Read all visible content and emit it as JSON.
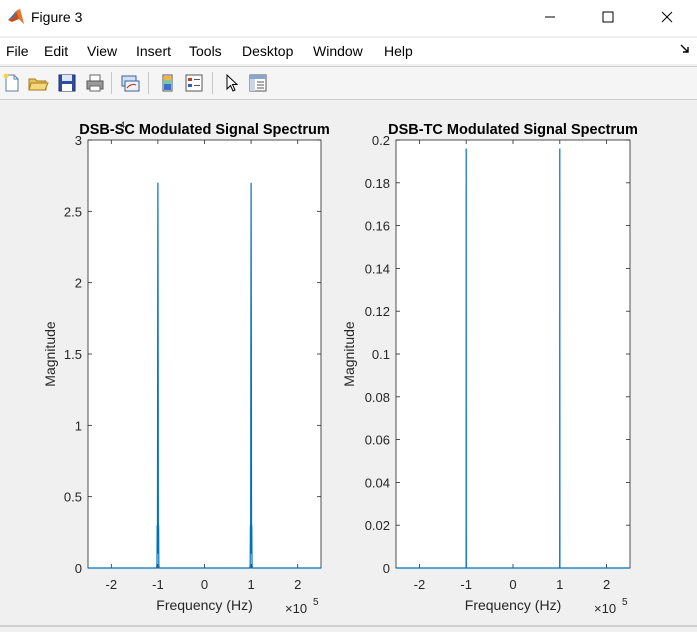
{
  "window": {
    "title": "Figure 3",
    "minimize_icon": "minimize-icon",
    "maximize_icon": "maximize-icon",
    "close_icon": "close-icon"
  },
  "menu": {
    "items": [
      "File",
      "Edit",
      "View",
      "Insert",
      "Tools",
      "Desktop",
      "Window",
      "Help"
    ]
  },
  "toolbar": {
    "icons": [
      "new-figure-icon",
      "open-file-icon",
      "save-icon",
      "print-icon",
      "link-plot-icon",
      "insert-colorbar-icon",
      "insert-legend-icon",
      "edit-plot-icon",
      "property-inspector-icon"
    ]
  },
  "colors": {
    "line": "#0072BD",
    "axes_bg": "#ffffff",
    "figure_bg": "#f0f0f0"
  },
  "chart_data": [
    {
      "type": "line",
      "title": "DSB-SC Modulated Signal Spectrum",
      "xlabel": "Frequency (Hz)",
      "ylabel": "Magnitude",
      "x_exponent_base": "×10",
      "x_exponent_power": "5",
      "y_exponent_fragment": "4",
      "xlim": [
        -2.5,
        2.5
      ],
      "ylim": [
        0,
        3
      ],
      "xticks": [
        -2,
        -1,
        0,
        1,
        2
      ],
      "xtick_labels": [
        "-2",
        "-1",
        "0",
        "1",
        "2"
      ],
      "yticks": [
        0,
        0.5,
        1,
        1.5,
        2,
        2.5,
        3
      ],
      "ytick_labels": [
        "0",
        "0.5",
        "1",
        "1.5",
        "2",
        "2.5",
        "3"
      ],
      "grid": false,
      "x_scale": 100000,
      "x": [
        -2.5,
        -1.03,
        -1.02,
        -1.015,
        -1.01,
        -1.005,
        -1.0,
        -0.995,
        -0.99,
        -0.985,
        -0.98,
        -0.97,
        0.97,
        0.98,
        0.985,
        0.99,
        0.995,
        1.0,
        1.005,
        1.01,
        1.015,
        1.02,
        1.03,
        2.5
      ],
      "y": [
        0,
        0,
        0.02,
        0.3,
        0.1,
        1.6,
        2.7,
        1.6,
        0.1,
        0.3,
        0.02,
        0,
        0,
        0.02,
        0.3,
        0.1,
        1.6,
        2.7,
        1.6,
        0.1,
        0.3,
        0.02,
        0,
        0
      ]
    },
    {
      "type": "line",
      "title": "DSB-TC Modulated Signal Spectrum",
      "xlabel": "Frequency (Hz)",
      "ylabel": "Magnitude",
      "x_exponent_base": "×10",
      "x_exponent_power": "5",
      "xlim": [
        -2.5,
        2.5
      ],
      "ylim": [
        0,
        0.2
      ],
      "xticks": [
        -2,
        -1,
        0,
        1,
        2
      ],
      "xtick_labels": [
        "-2",
        "-1",
        "0",
        "1",
        "2"
      ],
      "yticks": [
        0,
        0.02,
        0.04,
        0.06,
        0.08,
        0.1,
        0.12,
        0.14,
        0.16,
        0.18,
        0.2
      ],
      "ytick_labels": [
        "0",
        "0.02",
        "0.04",
        "0.06",
        "0.08",
        "0.1",
        "0.12",
        "0.14",
        "0.16",
        "0.18",
        "0.2"
      ],
      "grid": false,
      "x": [
        -2.5,
        -1.002,
        -1.0,
        -0.998,
        0.998,
        1.0,
        1.002,
        2.5
      ],
      "y": [
        0,
        0,
        0.196,
        0,
        0,
        0.196,
        0,
        0
      ]
    }
  ]
}
